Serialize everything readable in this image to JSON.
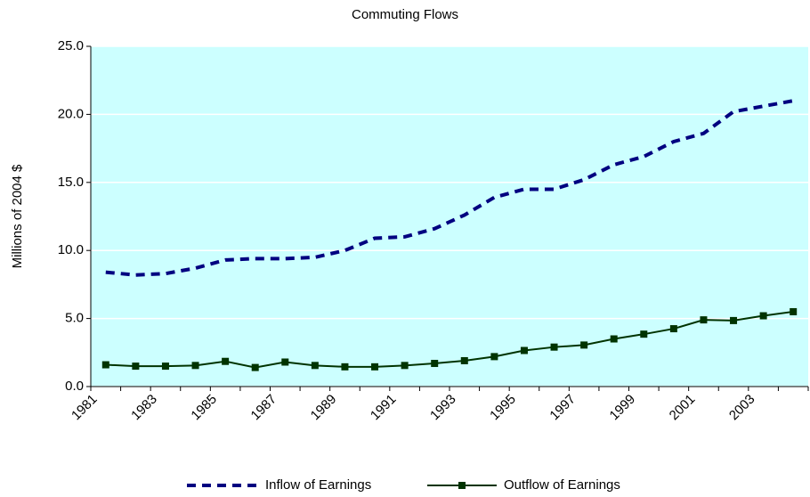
{
  "chart_data": {
    "type": "line",
    "title": "Commuting Flows",
    "y_label": "Millions of 2004 $",
    "categories": [
      "1981",
      null,
      "1983",
      null,
      "1985",
      null,
      "1987",
      null,
      "1989",
      null,
      "1991",
      null,
      "1993",
      null,
      "1995",
      null,
      "1997",
      null,
      "1999",
      null,
      "2001",
      null,
      "2003",
      null
    ],
    "series": [
      {
        "name": "Inflow of Earnings",
        "color": "#000080",
        "dashed": true,
        "values": [
          8.4,
          8.2,
          8.3,
          8.7,
          9.3,
          9.4,
          9.4,
          9.5,
          10.0,
          10.9,
          11.0,
          11.6,
          12.6,
          13.9,
          14.5,
          14.5,
          15.2,
          16.3,
          16.9,
          18.0,
          18.6,
          20.2,
          20.6,
          21.0
        ]
      },
      {
        "name": "Outflow of Earnings",
        "color": "#003300",
        "markers": true,
        "values": [
          1.6,
          1.5,
          1.5,
          1.55,
          1.85,
          1.4,
          1.8,
          1.55,
          1.45,
          1.45,
          1.55,
          1.7,
          1.9,
          2.2,
          2.65,
          2.9,
          3.05,
          3.5,
          3.85,
          4.25,
          4.9,
          4.85,
          5.2,
          5.5
        ]
      }
    ],
    "ylim": [
      0,
      25
    ],
    "yticks": [
      {
        "value": 0,
        "label": "0.0"
      },
      {
        "value": 5,
        "label": "5.0"
      },
      {
        "value": 10,
        "label": "10.0"
      },
      {
        "value": 15,
        "label": "15.0"
      },
      {
        "value": 20,
        "label": "20.0"
      },
      {
        "value": 25,
        "label": "25.0"
      }
    ],
    "grid": true,
    "background": "#ccffff",
    "legend": "bottom"
  }
}
